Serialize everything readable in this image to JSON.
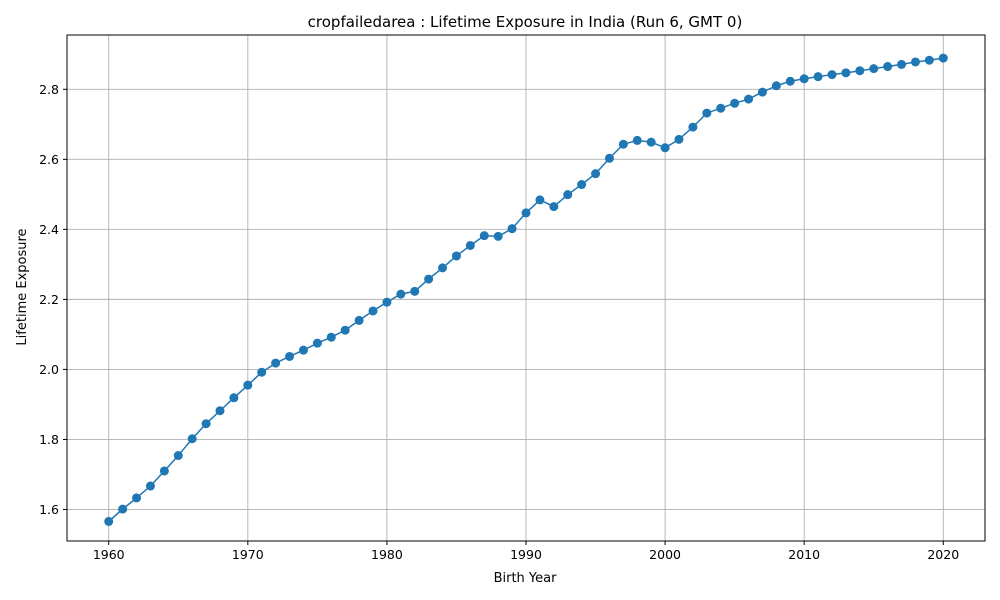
{
  "chart_data": {
    "type": "line",
    "title": "cropfailedarea : Lifetime Exposure in India (Run 6, GMT 0)",
    "xlabel": "Birth Year",
    "ylabel": "Lifetime Exposure",
    "xlim": [
      1957,
      2023
    ],
    "ylim": [
      1.51,
      2.955
    ],
    "xticks": [
      1960,
      1970,
      1980,
      1990,
      2000,
      2010,
      2020
    ],
    "yticks": [
      1.6,
      1.8,
      2.0,
      2.2,
      2.4,
      2.6,
      2.8
    ],
    "grid": true,
    "marker": "circle",
    "color": "#1f77b4",
    "series": [
      {
        "x": [
          1960,
          1961,
          1962,
          1963,
          1964,
          1965,
          1966,
          1967,
          1968,
          1969,
          1970,
          1971,
          1972,
          1973,
          1974,
          1975,
          1976,
          1977,
          1978,
          1979,
          1980,
          1981,
          1982,
          1983,
          1984,
          1985,
          1986,
          1987,
          1988,
          1989,
          1990,
          1991,
          1992,
          1993,
          1994,
          1995,
          1996,
          1997,
          1998,
          1999,
          2000,
          2001,
          2002,
          2003,
          2004,
          2005,
          2006,
          2007,
          2008,
          2009,
          2010,
          2011,
          2012,
          2013,
          2014,
          2015,
          2016,
          2017,
          2018,
          2019,
          2020
        ],
        "values": [
          1.566,
          1.601,
          1.633,
          1.667,
          1.71,
          1.754,
          1.802,
          1.845,
          1.882,
          1.919,
          1.955,
          1.992,
          2.018,
          2.037,
          2.055,
          2.075,
          2.092,
          2.112,
          2.14,
          2.167,
          2.192,
          2.215,
          2.223,
          2.258,
          2.29,
          2.324,
          2.354,
          2.382,
          2.38,
          2.402,
          2.447,
          2.484,
          2.465,
          2.499,
          2.528,
          2.559,
          2.603,
          2.643,
          2.654,
          2.649,
          2.633,
          2.657,
          2.692,
          2.732,
          2.746,
          2.76,
          2.772,
          2.792,
          2.81,
          2.823,
          2.83,
          2.836,
          2.842,
          2.847,
          2.853,
          2.859,
          2.865,
          2.871,
          2.878,
          2.883,
          2.889
        ]
      }
    ]
  }
}
